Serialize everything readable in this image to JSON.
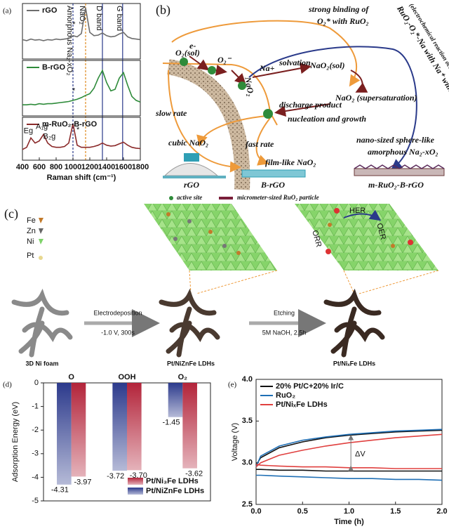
{
  "chart_data": [
    {
      "type": "line",
      "panel_label": "(a)",
      "legend": "upper left",
      "xlim": [
        400,
        1800
      ],
      "ylim": [
        0,
        1
      ],
      "x": [
        400,
        450,
        500,
        550,
        600,
        650,
        700,
        750,
        800,
        850,
        900,
        950,
        1000,
        1050,
        1100,
        1150,
        1200,
        1250,
        1300,
        1350,
        1400,
        1450,
        1500,
        1550,
        1600,
        1650,
        1700,
        1750,
        1800
      ],
      "series": [
        {
          "name": "rGO",
          "color": "#6d6d6d",
          "values": [
            0.35,
            0.33,
            0.36,
            0.34,
            0.35,
            0.33,
            0.35,
            0.34,
            0.36,
            0.35,
            0.36,
            0.37,
            0.42,
            0.4,
            0.46,
            0.92,
            0.48,
            0.42,
            0.43,
            0.47,
            0.42,
            0.4,
            0.41,
            0.45,
            0.48,
            0.4,
            0.37,
            0.36,
            0.35
          ]
        }
      ],
      "reference_lines": [
        {
          "x": 1000,
          "label": "Amorphous Na₂-xO₂",
          "color": "#2a3a8a",
          "dashed": true
        },
        {
          "x": 1150,
          "label": "NaO₂",
          "color": "#e08a1e",
          "dashed": true
        },
        {
          "x": 1350,
          "label": "D band",
          "color": "#2a3a8a",
          "dashed": false
        },
        {
          "x": 1590,
          "label": "G band",
          "color": "#2a3a8a",
          "dashed": false
        }
      ],
      "annotations": [
        "*"
      ]
    },
    {
      "type": "line",
      "legend": "upper left",
      "xlim": [
        400,
        1800
      ],
      "ylim": [
        0,
        1
      ],
      "x": [
        400,
        450,
        500,
        550,
        600,
        650,
        700,
        750,
        800,
        850,
        900,
        950,
        1000,
        1050,
        1100,
        1150,
        1200,
        1250,
        1300,
        1350,
        1400,
        1450,
        1500,
        1550,
        1600,
        1650,
        1700,
        1750,
        1800
      ],
      "series": [
        {
          "name": "B-rGO",
          "color": "#2e8b3a",
          "values": [
            0.2,
            0.2,
            0.21,
            0.2,
            0.22,
            0.21,
            0.22,
            0.22,
            0.23,
            0.24,
            0.25,
            0.26,
            0.28,
            0.3,
            0.33,
            0.37,
            0.4,
            0.5,
            0.68,
            0.82,
            0.6,
            0.45,
            0.48,
            0.68,
            0.78,
            0.55,
            0.35,
            0.28,
            0.25
          ]
        }
      ],
      "annotations": [
        "*"
      ]
    },
    {
      "type": "line",
      "legend": "upper left",
      "xlim": [
        400,
        1800
      ],
      "ylim": [
        0,
        1
      ],
      "xticks": [
        400,
        600,
        800,
        1000,
        1200,
        1400,
        1600,
        1800
      ],
      "xlabel": "Raman shift (cm⁻¹)",
      "x": [
        400,
        450,
        500,
        550,
        600,
        650,
        700,
        750,
        800,
        850,
        900,
        950,
        1000,
        1050,
        1100,
        1150,
        1200,
        1250,
        1300,
        1350,
        1400,
        1450,
        1500,
        1550,
        1600,
        1650,
        1700,
        1750,
        1800
      ],
      "series": [
        {
          "name": "m-RuO₂-B-rGO",
          "color": "#8b2a2a",
          "values": [
            0.25,
            0.3,
            0.52,
            0.4,
            0.45,
            0.6,
            0.4,
            0.32,
            0.3,
            0.3,
            0.32,
            0.4,
            0.85,
            0.35,
            0.3,
            0.3,
            0.3,
            0.32,
            0.35,
            0.4,
            0.35,
            0.33,
            0.34,
            0.38,
            0.42,
            0.35,
            0.3,
            0.28,
            0.27
          ]
        }
      ],
      "annotations": [
        "Eg",
        "A₁g",
        "B₂g",
        "*"
      ]
    },
    {
      "type": "bar",
      "panel_label": "(d)",
      "legend": "lower right",
      "ylabel": "Adsorption Energy (eV)",
      "categories": [
        "O",
        "OOH",
        "O₂"
      ],
      "ylim": [
        -5,
        0
      ],
      "yticks": [
        0,
        -1,
        -2,
        -3,
        -4,
        -5
      ],
      "series": [
        {
          "name": "Pt/Ni₃Fe LDHs",
          "color": "#b3243a",
          "values": [
            -3.97,
            -3.7,
            -3.62
          ],
          "value_labels": [
            "-3.97",
            "-3.70",
            "-3.62"
          ]
        },
        {
          "name": "Pt/NiZnFe LDHs",
          "color": "#2c3a8c",
          "values": [
            -4.31,
            -3.72,
            -1.45
          ],
          "value_labels": [
            "-4.31",
            "-3.72",
            "-1.45"
          ]
        }
      ]
    },
    {
      "type": "line",
      "panel_label": "(e)",
      "legend": "upper left",
      "xlabel": "Time (h)",
      "ylabel": "Voltage (V)",
      "xlim": [
        0,
        2
      ],
      "ylim": [
        2.5,
        4
      ],
      "xticks": [
        {
          "value": 0,
          "label": "0.0"
        },
        0.5,
        {
          "value": 1,
          "label": "1.0"
        },
        1.5,
        {
          "value": 2,
          "label": "2.0"
        }
      ],
      "yticks": [
        2.5,
        {
          "value": 3,
          "label": "3.0"
        },
        3.5,
        {
          "value": 4,
          "label": "4.0"
        }
      ],
      "x": [
        0,
        0.05,
        0.25,
        0.5,
        0.75,
        1,
        1.25,
        1.5,
        1.75,
        2
      ],
      "series": [
        {
          "name": "20% Pt/C+20% Ir/C",
          "color": "#111111",
          "values": [
            2.97,
            3.06,
            3.18,
            3.25,
            3.3,
            3.33,
            3.35,
            3.37,
            3.38,
            3.39
          ],
          "values2": [
            2.92,
            2.92,
            2.91,
            2.91,
            2.9,
            2.9,
            2.9,
            2.9,
            2.9,
            2.9
          ]
        },
        {
          "name": "RuO₂",
          "color": "#1f6fb5",
          "values": [
            2.95,
            3.08,
            3.2,
            3.27,
            3.31,
            3.34,
            3.36,
            3.38,
            3.39,
            3.4
          ],
          "values2": [
            2.85,
            2.85,
            2.84,
            2.83,
            2.82,
            2.81,
            2.81,
            2.8,
            2.8,
            2.79
          ]
        },
        {
          "name": "Pt/NiₓFe LDHs",
          "color": "#e0403f",
          "values": [
            2.95,
            3.0,
            3.09,
            3.15,
            3.2,
            3.24,
            3.27,
            3.3,
            3.32,
            3.34
          ],
          "values2": [
            2.98,
            2.97,
            2.96,
            2.95,
            2.95,
            2.94,
            2.94,
            2.93,
            2.93,
            2.93
          ]
        }
      ],
      "annotations": [
        "ΔV"
      ]
    }
  ],
  "diagram_b": {
    "label": "(b)",
    "strong_1": "strong binding of",
    "strong_2": "O₂* with RuO₂",
    "diag_1": "RuO₂-O₂*-Na with Na⁺ with e⁻",
    "diag_2": "(electrochemical reaction occurs on surface)",
    "e": "e-",
    "o2sol": "O₂(sol)",
    "o2minus": "O₂⁻",
    "na": "Na+",
    "nao2": "NaO₂",
    "solvation": "solvation",
    "nao2sol": "NaO₂(sol)",
    "nao2super": "NaO₂ (supersaturation)",
    "discharge": "discharge product",
    "nucleation": "nucleation and growth",
    "slow": "slow rate",
    "fast": "fast rate",
    "cubic": "cubic NaO₂",
    "film": "film-like NaO₂",
    "nano_1": "nano-sized sphere-like",
    "nano_2": "amorphous Na₂-xO₂",
    "rgo": "rGO",
    "brgo": "B-rGO",
    "mrgo": "m-RuO₂-B-rGO",
    "active": "active site",
    "particle": "micrometer-sized RuO₂ particle"
  },
  "diagram_c": {
    "label": "(c)",
    "fe": "Fe",
    "zn": "Zn",
    "ni": "Ni",
    "pt": "Pt",
    "her": "HER",
    "orr": "ORR",
    "oer": "OER",
    "step1": "Electrodeposition",
    "step1_cond": "-1.0 V, 300s",
    "step2": "Etching",
    "step2_cond": "5M NaOH, 2.5h",
    "foam": "3D Ni foam",
    "mid": "Pt/NiZnFe LDHs",
    "final": "Pt/NiₓFe LDHs"
  }
}
